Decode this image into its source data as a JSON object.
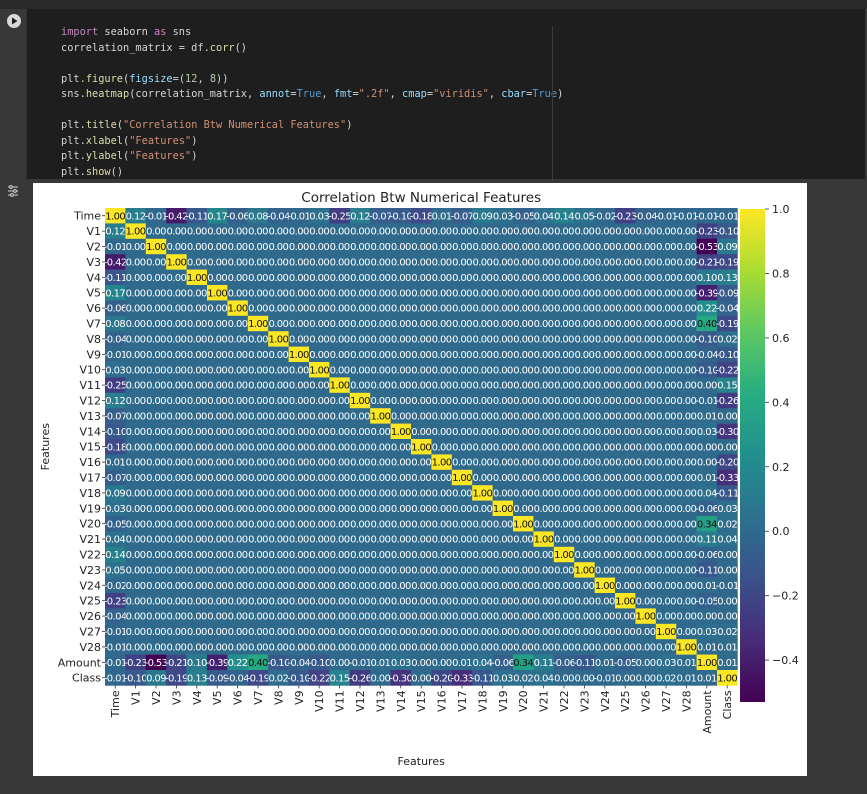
{
  "code": {
    "lines": [
      [
        [
          "kw",
          "import"
        ],
        [
          "t",
          " seaborn "
        ],
        [
          "kw",
          "as"
        ],
        [
          "t",
          " sns"
        ]
      ],
      [
        [
          "t",
          "correlation_matrix = df."
        ],
        [
          "fn",
          "corr"
        ],
        [
          "t",
          "()"
        ]
      ],
      [],
      [
        [
          "t",
          "plt."
        ],
        [
          "fn",
          "figure"
        ],
        [
          "t",
          "("
        ],
        [
          "arg",
          "figsize"
        ],
        [
          "t",
          "=("
        ],
        [
          "num",
          "12"
        ],
        [
          "t",
          ", "
        ],
        [
          "num",
          "8"
        ],
        [
          "t",
          "))"
        ]
      ],
      [
        [
          "t",
          "sns."
        ],
        [
          "fn",
          "heatmap"
        ],
        [
          "t",
          "(correlation_matrix, "
        ],
        [
          "arg",
          "annot"
        ],
        [
          "t",
          "="
        ],
        [
          "bool",
          "True"
        ],
        [
          "t",
          ", "
        ],
        [
          "arg",
          "fmt"
        ],
        [
          "t",
          "="
        ],
        [
          "str",
          "\".2f\""
        ],
        [
          "t",
          ", "
        ],
        [
          "arg",
          "cmap"
        ],
        [
          "t",
          "="
        ],
        [
          "str",
          "\"viridis\""
        ],
        [
          "t",
          ", "
        ],
        [
          "arg",
          "cbar"
        ],
        [
          "t",
          "="
        ],
        [
          "bool",
          "True"
        ],
        [
          "t",
          ")"
        ]
      ],
      [],
      [
        [
          "t",
          "plt."
        ],
        [
          "fn",
          "title"
        ],
        [
          "t",
          "("
        ],
        [
          "str",
          "\"Correlation Btw Numerical Features\""
        ],
        [
          "t",
          ")"
        ]
      ],
      [
        [
          "t",
          "plt."
        ],
        [
          "fn",
          "xlabel"
        ],
        [
          "t",
          "("
        ],
        [
          "str",
          "\"Features\""
        ],
        [
          "t",
          ")"
        ]
      ],
      [
        [
          "t",
          "plt."
        ],
        [
          "fn",
          "ylabel"
        ],
        [
          "t",
          "("
        ],
        [
          "str",
          "\"Features\""
        ],
        [
          "t",
          ")"
        ]
      ],
      [
        [
          "t",
          "plt."
        ],
        [
          "fn",
          "show"
        ],
        [
          "t",
          "()"
        ]
      ]
    ]
  },
  "chart_data": {
    "type": "heatmap",
    "title": "Correlation Btw Numerical Features",
    "xlabel": "Features",
    "ylabel": "Features",
    "cmap": "viridis",
    "vmin": -0.53,
    "vmax": 1.0,
    "colorbar_ticks": [
      "1.0",
      "0.8",
      "0.6",
      "0.4",
      "0.2",
      "0.0",
      "−0.2",
      "−0.4"
    ],
    "colorbar_tick_values": [
      1.0,
      0.8,
      0.6,
      0.4,
      0.2,
      0.0,
      -0.2,
      -0.4
    ],
    "labels": [
      "Time",
      "V1",
      "V2",
      "V3",
      "V4",
      "V5",
      "V6",
      "V7",
      "V8",
      "V9",
      "V10",
      "V11",
      "V12",
      "V13",
      "V14",
      "V15",
      "V16",
      "V17",
      "V18",
      "V19",
      "V20",
      "V21",
      "V22",
      "V23",
      "V24",
      "V25",
      "V26",
      "V27",
      "V28",
      "Amount",
      "Class"
    ],
    "time_row": [
      1.0,
      0.12,
      -0.01,
      -0.42,
      -0.11,
      0.17,
      -0.06,
      0.08,
      -0.04,
      -0.01,
      0.03,
      -0.25,
      0.12,
      -0.07,
      -0.1,
      -0.18,
      0.01,
      -0.07,
      0.09,
      0.03,
      -0.05,
      0.04,
      0.14,
      0.05,
      -0.02,
      -0.23,
      -0.04,
      -0.01,
      -0.01,
      -0.01,
      -0.01
    ],
    "amount_row": [
      -0.01,
      -0.23,
      -0.53,
      -0.21,
      0.1,
      -0.39,
      0.22,
      0.4,
      -0.1,
      -0.04,
      -0.1,
      0.0,
      -0.01,
      0.01,
      0.03,
      -0.0,
      -0.0,
      0.01,
      0.04,
      -0.06,
      0.34,
      0.11,
      -0.06,
      -0.11,
      0.01,
      -0.05,
      -0.0,
      0.03,
      0.01,
      1.0,
      0.01
    ],
    "class_row": [
      -0.01,
      -0.1,
      0.09,
      -0.19,
      0.13,
      -0.09,
      -0.04,
      -0.19,
      0.02,
      -0.1,
      -0.22,
      0.15,
      -0.26,
      -0.0,
      -0.3,
      -0.0,
      -0.2,
      -0.33,
      -0.11,
      0.03,
      0.02,
      0.04,
      0.0,
      -0.0,
      -0.01,
      0.0,
      0.0,
      0.02,
      0.01,
      0.01,
      1.0
    ]
  }
}
